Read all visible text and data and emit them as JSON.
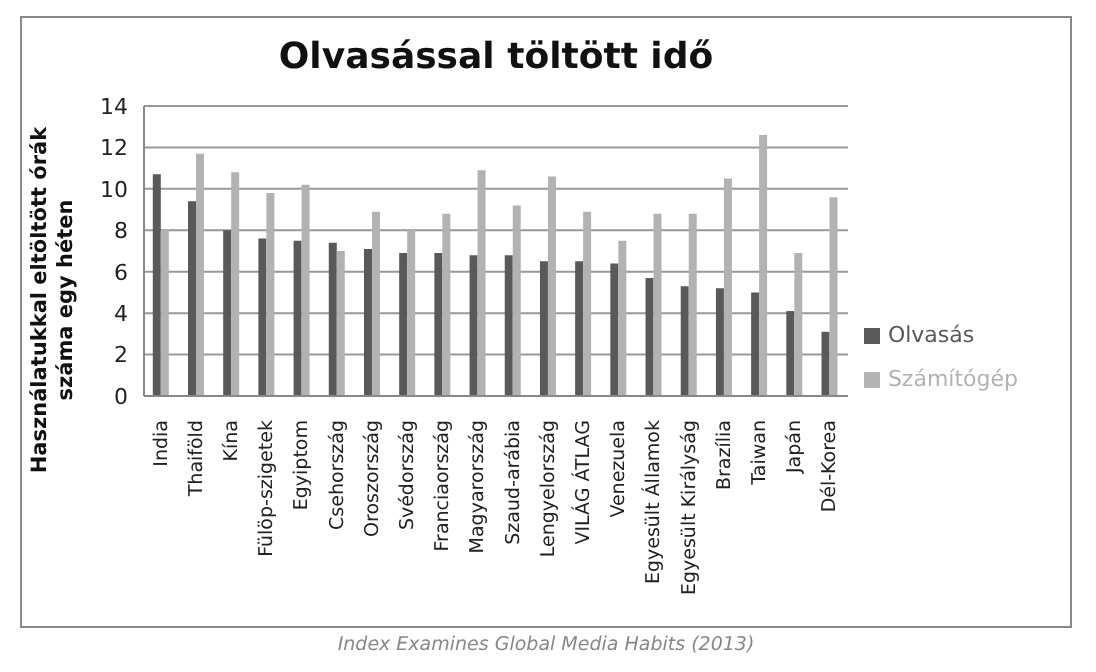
{
  "chart_data": {
    "type": "bar",
    "title": "Olvasással töltött idő",
    "ylabel": "Használatukkal eltöltött órák száma egy héten",
    "categories": [
      "India",
      "Thaiföld",
      "Kína",
      "Fülöp-szigetek",
      "Egyiptom",
      "Csehország",
      "Oroszország",
      "Svédország",
      "Franciaország",
      "Magyarország",
      "Szaud-arábia",
      "Lengyelország",
      "VILÁG ÁTLAG",
      "Venezuela",
      "Egyesült Államok",
      "Egyesült Királyság",
      "Brazília",
      "Taiwan",
      "Japán",
      "Dél-Korea"
    ],
    "series": [
      {
        "name": "Olvasás",
        "color": "#595959",
        "values": [
          10.7,
          9.4,
          8.0,
          7.6,
          7.5,
          7.4,
          7.1,
          6.9,
          6.9,
          6.8,
          6.8,
          6.5,
          6.5,
          6.4,
          5.7,
          5.3,
          5.2,
          5.0,
          4.1,
          3.1
        ]
      },
      {
        "name": "Számítógép",
        "color": "#b2b2b2",
        "values": [
          8.0,
          11.7,
          10.8,
          9.8,
          10.2,
          7.0,
          8.9,
          8.0,
          8.8,
          10.9,
          9.2,
          10.6,
          8.9,
          7.5,
          8.8,
          8.8,
          10.5,
          12.6,
          6.9,
          9.6
        ]
      }
    ],
    "ylim": [
      0,
      14
    ],
    "yticks": [
      0,
      2,
      4,
      6,
      8,
      10,
      12,
      14
    ],
    "grid": "y",
    "legend": "right",
    "annotations": [
      "Index Examines Global Media Habits (2013)"
    ]
  }
}
